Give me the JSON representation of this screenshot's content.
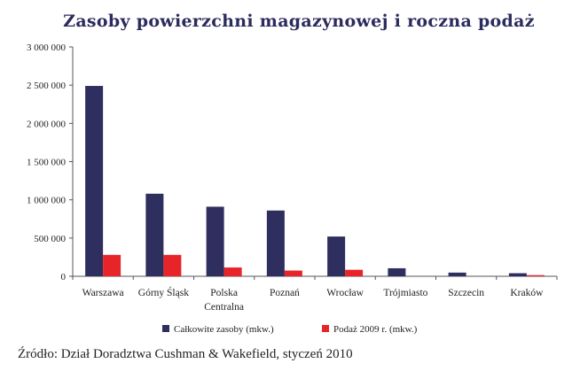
{
  "chart_data": {
    "type": "bar",
    "title": "Zasoby powierzchni magazynowej i roczna podaż",
    "xlabel": "",
    "ylabel": "",
    "ylim": [
      0,
      3000000
    ],
    "yticks": [
      "0",
      "500 000",
      "1 000 000",
      "1 500 000",
      "2 000 000",
      "2 500 000",
      "3 000 000"
    ],
    "ytick_values": [
      0,
      500000,
      1000000,
      1500000,
      2000000,
      2500000,
      3000000
    ],
    "categories": [
      "Warszawa",
      "Górny Śląsk",
      "Polska Centralna",
      "Poznań",
      "Wrocław",
      "Trójmiasto",
      "Szczecin",
      "Kraków"
    ],
    "category_lines": [
      [
        "Warszawa"
      ],
      [
        "Górny Śląsk"
      ],
      [
        "Polska",
        "Centralna"
      ],
      [
        "Poznań"
      ],
      [
        "Wrocław"
      ],
      [
        "Trójmiasto"
      ],
      [
        "Szczecin"
      ],
      [
        "Kraków"
      ]
    ],
    "series": [
      {
        "name": "Całkowite zasoby (mkw.)",
        "color": "#2e2e5f",
        "values": [
          2490000,
          1080000,
          910000,
          860000,
          520000,
          105000,
          48000,
          40000
        ]
      },
      {
        "name": "Podaż 2009 r. (mkw.)",
        "color": "#e8242b",
        "values": [
          280000,
          280000,
          115000,
          75000,
          85000,
          0,
          0,
          15000
        ]
      }
    ],
    "grid": false,
    "legend_position": "bottom"
  },
  "source": "Źródło: Dział Doradztwa Cushman & Wakefield, styczeń 2010"
}
